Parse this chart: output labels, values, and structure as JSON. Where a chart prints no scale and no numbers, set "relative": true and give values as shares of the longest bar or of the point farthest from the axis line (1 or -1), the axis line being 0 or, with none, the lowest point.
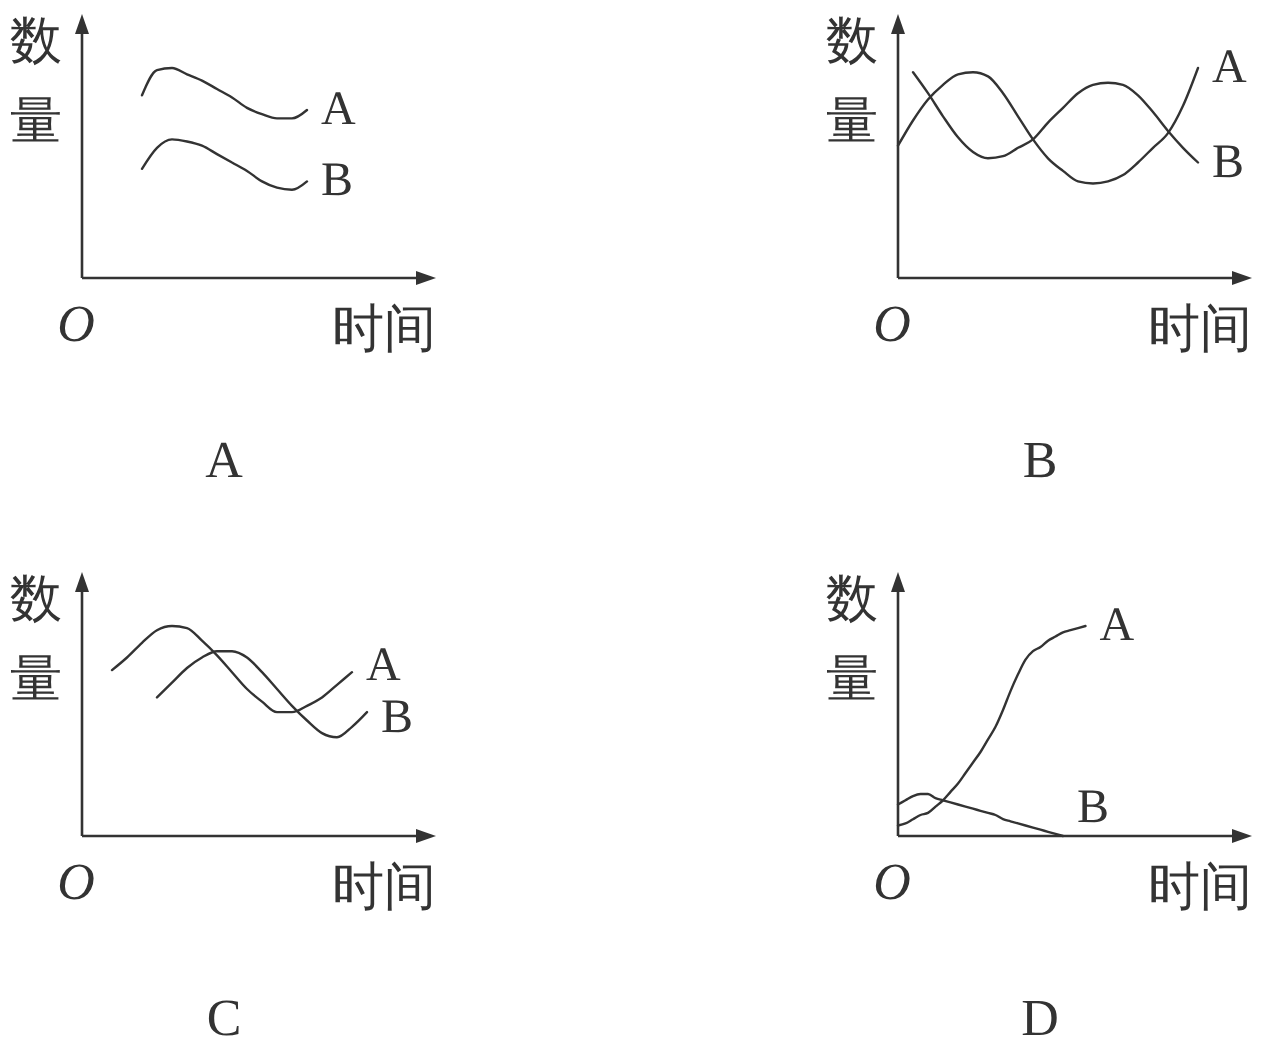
{
  "chart_data": [
    {
      "type": "line",
      "title": "A",
      "xlabel": "时间",
      "ylabel": "数量",
      "annotations": [
        "O"
      ],
      "relative": true,
      "categories": [
        null,
        null,
        null,
        null,
        null,
        null,
        null,
        null,
        null,
        null,
        null,
        null,
        null,
        null,
        null,
        null,
        null,
        null,
        null,
        null,
        null,
        null,
        null,
        null
      ],
      "series": [
        {
          "name": "A",
          "color": "#333333",
          "values": [
            null,
            null,
            null,
            null,
            0.87,
            0.99,
            1,
            0.97,
            0.94,
            0.9,
            0.86,
            0.81,
            0.78,
            0.76,
            0.76,
            0.8,
            null,
            null,
            null,
            null,
            null,
            null,
            null,
            null
          ]
        },
        {
          "name": "B",
          "color": "#333333",
          "values": [
            null,
            null,
            null,
            null,
            0.52,
            0.62,
            0.66,
            0.65,
            0.63,
            0.59,
            0.55,
            0.51,
            0.46,
            0.43,
            0.42,
            0.46,
            null,
            null,
            null,
            null,
            null,
            null,
            null,
            null
          ]
        }
      ]
    },
    {
      "type": "line",
      "title": "B",
      "xlabel": "时间",
      "ylabel": "数量",
      "annotations": [
        "O"
      ],
      "relative": true,
      "categories": [
        null,
        null,
        null,
        null,
        null,
        null,
        null,
        null,
        null,
        null,
        null,
        null,
        null,
        null,
        null,
        null,
        null,
        null,
        null,
        null,
        null,
        null,
        null,
        null
      ],
      "series": [
        {
          "name": "A",
          "color": "#333333",
          "values": [
            0.63,
            0.75,
            0.85,
            0.92,
            0.97,
            0.98,
            0.96,
            0.88,
            0.77,
            0.66,
            0.57,
            0.51,
            0.46,
            0.45,
            0.46,
            0.49,
            0.55,
            0.62,
            0.69,
            0.82,
            1,
            null,
            null,
            null
          ]
        },
        {
          "name": "B",
          "color": "#333333",
          "values": [
            null,
            0.98,
            0.88,
            0.77,
            0.67,
            0.6,
            0.57,
            0.58,
            0.62,
            0.66,
            0.74,
            0.81,
            0.88,
            0.92,
            0.93,
            0.92,
            0.87,
            0.79,
            0.7,
            0.62,
            0.55,
            null,
            null,
            null
          ]
        }
      ]
    },
    {
      "type": "line",
      "title": "C",
      "xlabel": "时间",
      "ylabel": "数量",
      "annotations": [
        "O"
      ],
      "relative": true,
      "categories": [
        null,
        null,
        null,
        null,
        null,
        null,
        null,
        null,
        null,
        null,
        null,
        null,
        null,
        null,
        null,
        null,
        null,
        null,
        null,
        null,
        null,
        null,
        null,
        null
      ],
      "series": [
        {
          "name": "A",
          "color": "#333333",
          "values": [
            null,
            null,
            0.79,
            0.85,
            0.92,
            0.98,
            1,
            0.99,
            0.93,
            0.86,
            0.78,
            0.7,
            0.64,
            0.59,
            0.59,
            0.62,
            0.66,
            0.72,
            0.78,
            null,
            null,
            null,
            null,
            null
          ]
        },
        {
          "name": "B",
          "color": "#333333",
          "values": [
            null,
            null,
            null,
            null,
            null,
            0.66,
            0.73,
            0.8,
            0.85,
            0.88,
            0.88,
            0.85,
            0.78,
            0.7,
            0.62,
            0.55,
            0.49,
            0.47,
            0.52,
            0.59,
            null,
            null,
            null,
            null
          ]
        }
      ]
    },
    {
      "type": "line",
      "title": "D",
      "xlabel": "时间",
      "ylabel": "数量",
      "annotations": [
        "O"
      ],
      "relative": true,
      "categories": [
        null,
        null,
        null,
        null,
        null,
        null,
        null,
        null,
        null,
        null,
        null,
        null,
        null,
        null,
        null,
        null,
        null,
        null,
        null,
        null,
        null,
        null,
        null,
        null,
        null,
        null,
        null,
        null,
        null,
        null,
        null,
        null,
        null,
        null,
        null,
        null,
        null,
        null,
        null,
        null,
        null,
        null,
        null,
        null,
        null,
        null,
        null
      ],
      "series": [
        {
          "name": "A",
          "color": "#333333",
          "values": [
            0.05,
            0.06,
            0.08,
            0.1,
            0.11,
            0.14,
            0.17,
            0.21,
            0.25,
            0.3,
            0.35,
            0.4,
            0.46,
            0.52,
            0.6,
            0.69,
            0.77,
            0.84,
            0.88,
            0.9,
            0.93,
            0.95,
            0.97,
            0.98,
            0.99,
            1,
            null,
            null,
            null,
            null,
            null,
            null,
            null,
            null,
            null,
            null,
            null,
            null,
            null,
            null,
            null,
            null,
            null,
            null,
            null,
            null,
            null
          ]
        },
        {
          "name": "B",
          "color": "#333333",
          "values": [
            0.15,
            0.17,
            0.19,
            0.2,
            0.2,
            0.18,
            0.17,
            0.16,
            0.15,
            0.14,
            0.13,
            0.12,
            0.11,
            0.1,
            0.08,
            0.07,
            0.06,
            0.05,
            0.04,
            0.03,
            0.02,
            0.01,
            0,
            null,
            null,
            null,
            null,
            null,
            null,
            null,
            null,
            null,
            null,
            null,
            null,
            null,
            null,
            null,
            null,
            null,
            null,
            null,
            null,
            null,
            null,
            null,
            null
          ]
        }
      ]
    }
  ]
}
